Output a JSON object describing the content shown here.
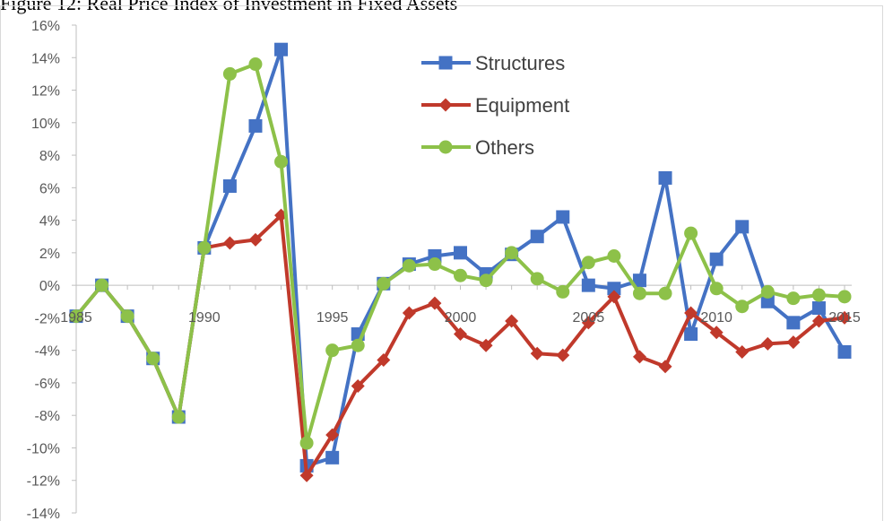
{
  "title": "Figure 12: Real Price Index of Investment in Fixed Assets",
  "chart_data": {
    "type": "line",
    "title": "Figure 12: Real Price Index of Investment in Fixed Assets",
    "xlabel": "",
    "ylabel": "",
    "x": [
      1985,
      1986,
      1987,
      1988,
      1989,
      1990,
      1991,
      1992,
      1993,
      1994,
      1995,
      1996,
      1997,
      1998,
      1999,
      2000,
      2001,
      2002,
      2003,
      2004,
      2005,
      2006,
      2007,
      2008,
      2009,
      2010,
      2011,
      2012,
      2013,
      2014,
      2015
    ],
    "x_ticks": [
      "1985",
      "1990",
      "1995",
      "2000",
      "2005",
      "2010",
      "2015"
    ],
    "y_ticks": [
      "16%",
      "14%",
      "12%",
      "10%",
      "8%",
      "6%",
      "4%",
      "2%",
      "0%",
      "-2%",
      "-4%",
      "-6%",
      "-8%",
      "-10%",
      "-12%",
      "-14%"
    ],
    "ylim": [
      -14,
      16
    ],
    "grid": false,
    "legend_position": "top-center",
    "series": [
      {
        "name": "Structures",
        "color": "#4472C4",
        "marker": "square",
        "values": [
          -1.9,
          0.0,
          -1.9,
          -4.5,
          -8.1,
          2.3,
          6.1,
          9.8,
          14.5,
          -11.1,
          -10.6,
          -3.0,
          0.1,
          1.3,
          1.8,
          2.0,
          0.7,
          1.9,
          3.0,
          4.2,
          0.0,
          -0.2,
          0.3,
          6.6,
          -3.0,
          1.6,
          3.6,
          -1.0,
          -2.3,
          -1.4,
          -4.1
        ]
      },
      {
        "name": "Equipment",
        "color": "#C0392B",
        "marker": "diamond",
        "values": [
          -1.9,
          0.0,
          -1.9,
          -4.5,
          -8.1,
          2.3,
          2.6,
          2.8,
          4.3,
          -11.7,
          -9.2,
          -6.2,
          -4.6,
          -1.7,
          -1.1,
          -3.0,
          -3.7,
          -2.2,
          -4.2,
          -4.3,
          -2.3,
          -0.7,
          -4.4,
          -5.0,
          -1.7,
          -2.9,
          -4.1,
          -3.6,
          -3.5,
          -2.2,
          -2.0
        ]
      },
      {
        "name": "Others",
        "color": "#8DC149",
        "marker": "circle",
        "values": [
          -1.9,
          0.0,
          -1.9,
          -4.5,
          -8.1,
          2.3,
          13.0,
          13.6,
          7.6,
          -9.7,
          -4.0,
          -3.7,
          0.1,
          1.2,
          1.3,
          0.6,
          0.3,
          2.0,
          0.4,
          -0.4,
          1.4,
          1.8,
          -0.5,
          -0.5,
          3.2,
          -0.2,
          -1.3,
          -0.4,
          -0.8,
          -0.6,
          -0.7
        ]
      }
    ]
  }
}
